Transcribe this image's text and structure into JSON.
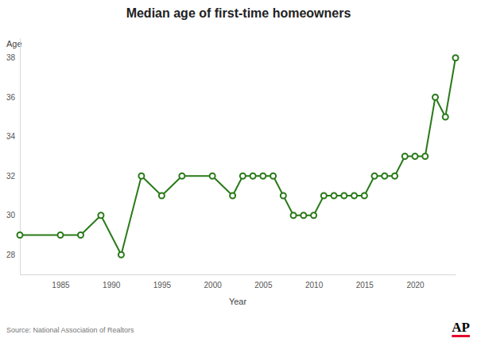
{
  "chart_data": {
    "type": "line",
    "title": "Median age of first-time homeowners",
    "x_label": "Year",
    "y_label": "Age",
    "source": "Source: National Association of Realtors",
    "logo": "AP",
    "x": [
      1981,
      1985,
      1987,
      1989,
      1991,
      1993,
      1995,
      1997,
      2000,
      2002,
      2003,
      2004,
      2005,
      2006,
      2007,
      2008,
      2009,
      2010,
      2011,
      2012,
      2013,
      2014,
      2015,
      2016,
      2017,
      2018,
      2019,
      2020,
      2021,
      2022,
      2023,
      2024
    ],
    "values": [
      29,
      29,
      29,
      30,
      28,
      32,
      31,
      32,
      32,
      31,
      32,
      32,
      32,
      32,
      31,
      30,
      30,
      30,
      31,
      31,
      31,
      31,
      31,
      32,
      32,
      32,
      33,
      33,
      33,
      36,
      35,
      38
    ],
    "color": "#2a7a1a",
    "marker": "circle",
    "xlim": [
      1981,
      2024
    ],
    "xticks": [
      1985,
      1990,
      1995,
      2000,
      2005,
      2010,
      2015,
      2020
    ],
    "ylim": [
      27,
      39
    ],
    "yticks": [
      28,
      30,
      32,
      34,
      36,
      38
    ],
    "grid": false
  }
}
